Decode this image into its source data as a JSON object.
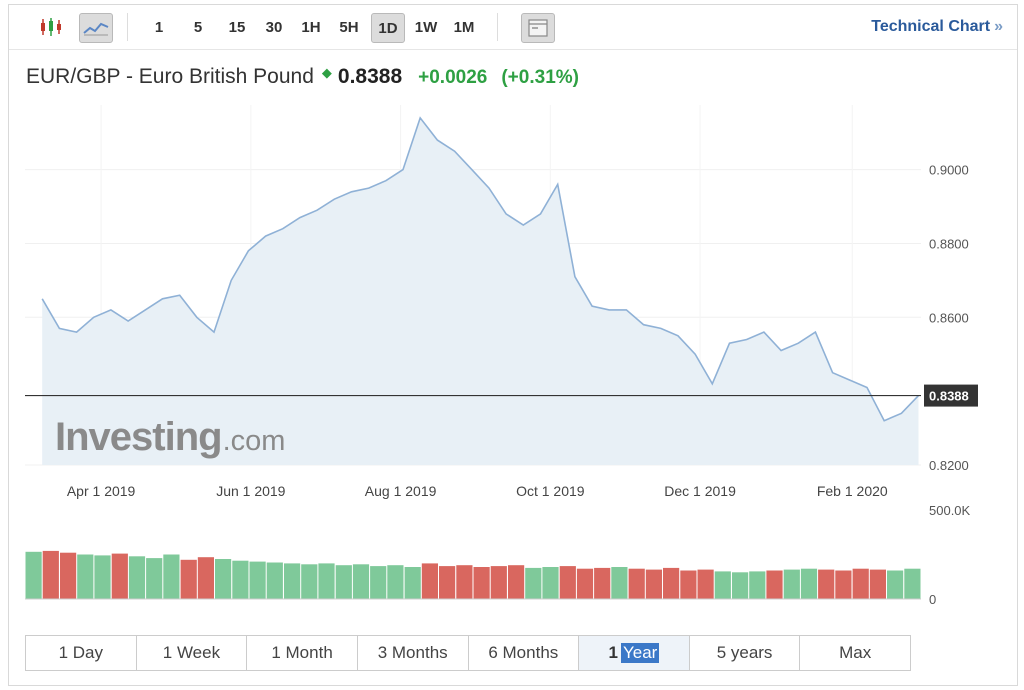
{
  "toolbar": {
    "intervals": [
      "1",
      "5",
      "15",
      "30",
      "1H",
      "5H",
      "1D",
      "1W",
      "1M"
    ],
    "active_interval": "1D",
    "technical_chart_label": "Technical Chart",
    "technical_chart_chevron": "»",
    "icons": [
      "candlestick-icon",
      "line-chart-icon",
      "window-icon"
    ]
  },
  "quote": {
    "name": "EUR/GBP - Euro British Pound",
    "price": "0.8388",
    "change": "+0.0026",
    "change_percent": "(+0.31%)",
    "up_color": "#2ea043"
  },
  "watermark": {
    "brand": "Investing",
    "suffix": ".com"
  },
  "range_buttons": {
    "items": [
      "1 Day",
      "1 Week",
      "1 Month",
      "3 Months",
      "6 Months",
      "1",
      "5 years",
      "Max"
    ],
    "active_prefix": "1",
    "active_highlight": "Year"
  },
  "chart_data": {
    "type": "area",
    "x_tick_labels": [
      "Apr 1 2019",
      "Jun 1 2019",
      "Aug 1 2019",
      "Oct 1 2019",
      "Dec 1 2019",
      "Feb 1 2020"
    ],
    "y_tick_labels": [
      "0.9000",
      "0.8800",
      "0.8600",
      "0.8200"
    ],
    "y_ticks": [
      0.9,
      0.88,
      0.86,
      0.82
    ],
    "ylim": [
      0.82,
      0.9175
    ],
    "last_value_label": "0.8388",
    "last_value": 0.8388,
    "series": [
      {
        "x": [
          "2019-03-08",
          "2019-03-15",
          "2019-03-22",
          "2019-03-29",
          "2019-04-05",
          "2019-04-12",
          "2019-04-19",
          "2019-04-26",
          "2019-05-03",
          "2019-05-10",
          "2019-05-17",
          "2019-05-24",
          "2019-05-31",
          "2019-06-07",
          "2019-06-14",
          "2019-06-21",
          "2019-06-28",
          "2019-07-05",
          "2019-07-12",
          "2019-07-19",
          "2019-07-26",
          "2019-08-02",
          "2019-08-09",
          "2019-08-16",
          "2019-08-23",
          "2019-08-30",
          "2019-09-06",
          "2019-09-13",
          "2019-09-20",
          "2019-09-27",
          "2019-10-04",
          "2019-10-11",
          "2019-10-18",
          "2019-10-25",
          "2019-11-01",
          "2019-11-08",
          "2019-11-15",
          "2019-11-22",
          "2019-11-29",
          "2019-12-06",
          "2019-12-13",
          "2019-12-20",
          "2019-12-27",
          "2020-01-03",
          "2020-01-10",
          "2020-01-17",
          "2020-01-24",
          "2020-01-31",
          "2020-02-07",
          "2020-02-14",
          "2020-02-21",
          "2020-02-28"
        ],
        "values": [
          0.865,
          0.857,
          0.856,
          0.86,
          0.862,
          0.859,
          0.862,
          0.865,
          0.866,
          0.86,
          0.856,
          0.87,
          0.878,
          0.882,
          0.884,
          0.887,
          0.889,
          0.892,
          0.894,
          0.895,
          0.897,
          0.9,
          0.914,
          0.908,
          0.905,
          0.9,
          0.895,
          0.888,
          0.885,
          0.888,
          0.896,
          0.871,
          0.863,
          0.862,
          0.862,
          0.858,
          0.857,
          0.855,
          0.85,
          0.842,
          0.853,
          0.854,
          0.856,
          0.851,
          0.853,
          0.856,
          0.845,
          0.843,
          0.841,
          0.832,
          0.834,
          0.8388
        ]
      }
    ],
    "volume": {
      "y_tick_labels": [
        "500.0K",
        "0"
      ],
      "ylim": [
        0,
        500000
      ],
      "values": [
        265000,
        270000,
        260000,
        250000,
        245000,
        255000,
        240000,
        230000,
        250000,
        220000,
        235000,
        225000,
        215000,
        210000,
        205000,
        200000,
        195000,
        200000,
        190000,
        195000,
        185000,
        190000,
        180000,
        200000,
        185000,
        190000,
        180000,
        185000,
        190000,
        175000,
        180000,
        185000,
        170000,
        175000,
        180000,
        170000,
        165000,
        175000,
        160000,
        165000,
        155000,
        150000,
        155000,
        160000,
        165000,
        170000,
        165000,
        160000,
        170000,
        165000,
        160000,
        170000
      ],
      "up_color": "#7fc99a",
      "down_color": "#d9675f"
    },
    "line_color": "#8fb1d6",
    "fill_color": "#e8f0f6",
    "grid": true
  }
}
